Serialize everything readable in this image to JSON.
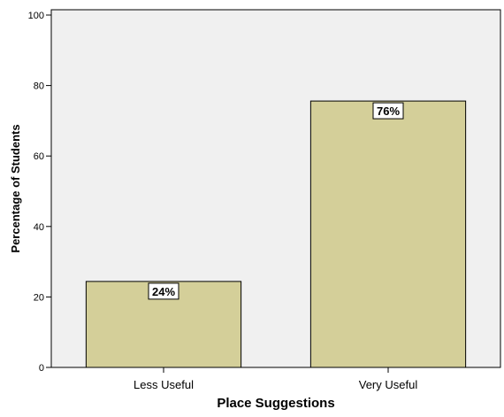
{
  "chart_data": {
    "type": "bar",
    "title": "",
    "xlabel": "Place Suggestions",
    "ylabel": "Percentage of Students",
    "categories": [
      "Less Useful",
      "Very Useful"
    ],
    "values": [
      24.4,
      75.6
    ],
    "data_labels": [
      "24%",
      "76%"
    ],
    "ylim": [
      0,
      100
    ],
    "yticks": [
      0,
      20,
      40,
      60,
      80,
      100
    ],
    "ytick_labels": [
      "0",
      "20",
      "40",
      "60",
      "80",
      "100"
    ],
    "grid": false,
    "legend": "none",
    "colors": {
      "bar_fill": "#d4cf99",
      "bar_stroke": "#000000",
      "plot_background": "#f0f0f0",
      "label_box_fill": "#ffffff"
    }
  }
}
